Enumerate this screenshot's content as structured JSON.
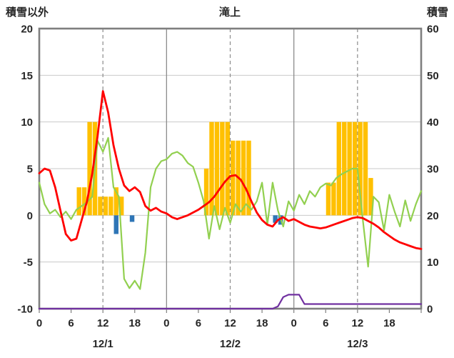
{
  "header": {
    "left_axis_title": "積雪以外",
    "chart_title": "滝上",
    "right_axis_title": "積雪"
  },
  "chart_data": {
    "type": "mixed",
    "title": "滝上",
    "colors": {
      "grid": "#C9C9C9",
      "grid_major": "#8C8C8C",
      "frame": "#7F7F7F",
      "text": "#262626"
    },
    "left_axis": {
      "label": "積雪以外",
      "min": -10,
      "max": 20,
      "ticks": [
        20,
        15,
        10,
        5,
        0,
        -5,
        -10
      ]
    },
    "right_axis": {
      "label": "積雪",
      "min": 0,
      "max": 60,
      "ticks": [
        60,
        50,
        40,
        30,
        20,
        10,
        0
      ]
    },
    "x_axis": {
      "hours_total": 72,
      "tick_step": 6,
      "tick_labels": [
        "0",
        "6",
        "12",
        "18",
        "0",
        "6",
        "12",
        "18",
        "0",
        "6",
        "12",
        "18"
      ],
      "date_labels": [
        "12/1",
        "12/2",
        "12/3"
      ],
      "solid_gridlines_hours": [
        24,
        48
      ],
      "dashed_gridlines_hours": [
        12,
        36,
        60
      ]
    },
    "series": [
      {
        "name": "orange-bars",
        "type": "bar",
        "axis": "left",
        "color": "#FFC000",
        "values": [
          0,
          0,
          0,
          0,
          0,
          0,
          0,
          3,
          3,
          10,
          10,
          2,
          2,
          2,
          3,
          2,
          0,
          0,
          0,
          0,
          0,
          0,
          0,
          0,
          0,
          0,
          0,
          0,
          0,
          0,
          0,
          5,
          10,
          10,
          10,
          10,
          8,
          8,
          8,
          8,
          0,
          0,
          0,
          0,
          0,
          0,
          0,
          0,
          0,
          0,
          0,
          0,
          0,
          0,
          3.5,
          3.5,
          10,
          10,
          10,
          10,
          10,
          10,
          4,
          0,
          0,
          0,
          0,
          0,
          0,
          0,
          0,
          0
        ]
      },
      {
        "name": "blue-bars",
        "type": "bar",
        "axis": "left",
        "color": "#2E75B6",
        "values": [
          0,
          0,
          0,
          0,
          0,
          0,
          0,
          0,
          0,
          0,
          0,
          0,
          0,
          0,
          -2,
          0,
          0,
          -0.7,
          0,
          0,
          0,
          0,
          0,
          0,
          0,
          0,
          0,
          0,
          0,
          0,
          0,
          0,
          0,
          0,
          0,
          0,
          0,
          0,
          0,
          0,
          0,
          0,
          0,
          0,
          -0.8,
          -1,
          0,
          0,
          0,
          0,
          0,
          0,
          0,
          0,
          0,
          0,
          0,
          0,
          0,
          0,
          0,
          0,
          0,
          0,
          0,
          0,
          0,
          0,
          0,
          0,
          0,
          0,
          0
        ]
      },
      {
        "name": "green-line",
        "type": "line",
        "axis": "left",
        "color": "#92D050",
        "width": 2.2,
        "values": [
          3.5,
          1.2,
          0.2,
          0.6,
          -0.2,
          0.4,
          -0.4,
          0.6,
          1,
          1.4,
          2,
          8,
          6.8,
          8.3,
          3,
          2,
          -6.8,
          -7.8,
          -7,
          -7.9,
          -4,
          3,
          5,
          5.8,
          6,
          6.6,
          6.8,
          6.4,
          5.6,
          5.2,
          3.5,
          1.5,
          -2.5,
          1,
          -1.5,
          0.8,
          -0.8,
          1.2,
          0.4,
          1.2,
          0.6,
          1.5,
          3.5,
          -1,
          3.5,
          0.5,
          -1.2,
          1.5,
          0.5,
          2.2,
          1.2,
          2.6,
          2,
          3,
          3.4,
          3.2,
          4,
          4.4,
          4.7,
          5,
          5,
          -0.5,
          -5.5,
          2,
          1.4,
          -1.6,
          2.2,
          0.4,
          -1.2,
          1.6,
          -0.6,
          1.2,
          2.6
        ]
      },
      {
        "name": "red-line",
        "type": "line",
        "axis": "left",
        "color": "#FF0000",
        "width": 2.8,
        "values": [
          4.5,
          5,
          4.8,
          3,
          0.5,
          -2,
          -2.7,
          -2.5,
          -0.5,
          1.5,
          4.5,
          8.5,
          13.3,
          11,
          7.5,
          5,
          3.2,
          2.6,
          3,
          2.5,
          1,
          0.5,
          0.8,
          0.4,
          0.2,
          -0.2,
          -0.4,
          -0.2,
          0,
          0.3,
          0.6,
          1,
          1.4,
          2,
          2.8,
          3.6,
          4.2,
          4.3,
          3.8,
          2.8,
          1.5,
          0.3,
          -0.5,
          -1,
          -1.2,
          -0.5,
          -0.2,
          -0.6,
          -0.4,
          -0.7,
          -1,
          -1.2,
          -1.3,
          -1.4,
          -1.3,
          -1.1,
          -0.9,
          -0.7,
          -0.5,
          -0.3,
          -0.2,
          -0.3,
          -0.6,
          -0.9,
          -1.3,
          -1.8,
          -2.2,
          -2.6,
          -2.9,
          -3.1,
          -3.3,
          -3.5,
          -3.6
        ]
      },
      {
        "name": "purple-line",
        "type": "line",
        "axis": "right",
        "color": "#7030A0",
        "width": 2.2,
        "values": [
          0,
          0,
          0,
          0,
          0,
          0,
          0,
          0,
          0,
          0,
          0,
          0,
          0,
          0,
          0,
          0,
          0,
          0,
          0,
          0,
          0,
          0,
          0,
          0,
          0,
          0,
          0,
          0,
          0,
          0,
          0,
          0,
          0,
          0,
          0,
          0,
          0,
          0,
          0,
          0,
          0,
          0,
          0,
          0,
          0,
          0.5,
          2.5,
          3,
          3,
          3,
          1,
          1,
          1,
          1,
          1,
          1,
          1,
          1,
          1,
          1,
          1,
          1,
          1,
          1,
          1,
          1,
          1,
          1,
          1,
          1,
          1,
          1,
          1
        ]
      }
    ]
  }
}
